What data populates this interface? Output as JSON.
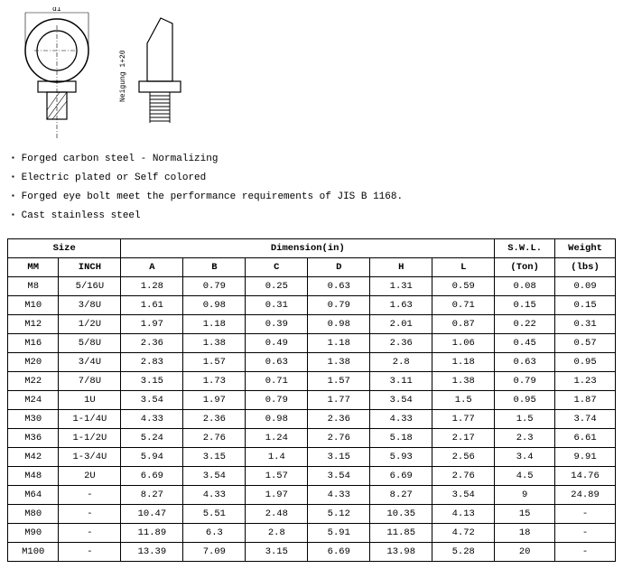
{
  "diagram": {
    "label_neigung": "Neigung 1+20",
    "label_d1": "d1",
    "label_d2": "d2"
  },
  "bullets": [
    "Forged carbon steel - Normalizing",
    "Electric plated or Self colored",
    "Forged eye bolt meet the performance requirements of JIS B 1168.",
    "Cast stainless steel"
  ],
  "table": {
    "header": {
      "size": "Size",
      "dimension": "Dimension(in)",
      "swl": "S.W.L.",
      "weight": "Weight",
      "mm": "MM",
      "inch": "INCH",
      "a": "A",
      "b": "B",
      "c": "C",
      "d": "D",
      "h": "H",
      "l": "L",
      "ton": "(Ton)",
      "lbs": "(lbs)"
    },
    "rows": [
      {
        "mm": "M8",
        "inch": "5/16U",
        "a": "1.28",
        "b": "0.79",
        "c": "0.25",
        "d": "0.63",
        "h": "1.31",
        "l": "0.59",
        "swl": "0.08",
        "wt": "0.09"
      },
      {
        "mm": "M10",
        "inch": "3/8U",
        "a": "1.61",
        "b": "0.98",
        "c": "0.31",
        "d": "0.79",
        "h": "1.63",
        "l": "0.71",
        "swl": "0.15",
        "wt": "0.15"
      },
      {
        "mm": "M12",
        "inch": "1/2U",
        "a": "1.97",
        "b": "1.18",
        "c": "0.39",
        "d": "0.98",
        "h": "2.01",
        "l": "0.87",
        "swl": "0.22",
        "wt": "0.31"
      },
      {
        "mm": "M16",
        "inch": "5/8U",
        "a": "2.36",
        "b": "1.38",
        "c": "0.49",
        "d": "1.18",
        "h": "2.36",
        "l": "1.06",
        "swl": "0.45",
        "wt": "0.57"
      },
      {
        "mm": "M20",
        "inch": "3/4U",
        "a": "2.83",
        "b": "1.57",
        "c": "0.63",
        "d": "1.38",
        "h": "2.8",
        "l": "1.18",
        "swl": "0.63",
        "wt": "0.95"
      },
      {
        "mm": "M22",
        "inch": "7/8U",
        "a": "3.15",
        "b": "1.73",
        "c": "0.71",
        "d": "1.57",
        "h": "3.11",
        "l": "1.38",
        "swl": "0.79",
        "wt": "1.23"
      },
      {
        "mm": "M24",
        "inch": "1U",
        "a": "3.54",
        "b": "1.97",
        "c": "0.79",
        "d": "1.77",
        "h": "3.54",
        "l": "1.5",
        "swl": "0.95",
        "wt": "1.87"
      },
      {
        "mm": "M30",
        "inch": "1-1/4U",
        "a": "4.33",
        "b": "2.36",
        "c": "0.98",
        "d": "2.36",
        "h": "4.33",
        "l": "1.77",
        "swl": "1.5",
        "wt": "3.74"
      },
      {
        "mm": "M36",
        "inch": "1-1/2U",
        "a": "5.24",
        "b": "2.76",
        "c": "1.24",
        "d": "2.76",
        "h": "5.18",
        "l": "2.17",
        "swl": "2.3",
        "wt": "6.61"
      },
      {
        "mm": "M42",
        "inch": "1-3/4U",
        "a": "5.94",
        "b": "3.15",
        "c": "1.4",
        "d": "3.15",
        "h": "5.93",
        "l": "2.56",
        "swl": "3.4",
        "wt": "9.91"
      },
      {
        "mm": "M48",
        "inch": "2U",
        "a": "6.69",
        "b": "3.54",
        "c": "1.57",
        "d": "3.54",
        "h": "6.69",
        "l": "2.76",
        "swl": "4.5",
        "wt": "14.76"
      },
      {
        "mm": "M64",
        "inch": "-",
        "a": "8.27",
        "b": "4.33",
        "c": "1.97",
        "d": "4.33",
        "h": "8.27",
        "l": "3.54",
        "swl": "9",
        "wt": "24.89"
      },
      {
        "mm": "M80",
        "inch": "-",
        "a": "10.47",
        "b": "5.51",
        "c": "2.48",
        "d": "5.12",
        "h": "10.35",
        "l": "4.13",
        "swl": "15",
        "wt": "-"
      },
      {
        "mm": "M90",
        "inch": "-",
        "a": "11.89",
        "b": "6.3",
        "c": "2.8",
        "d": "5.91",
        "h": "11.85",
        "l": "4.72",
        "swl": "18",
        "wt": "-"
      },
      {
        "mm": "M100",
        "inch": "-",
        "a": "13.39",
        "b": "7.09",
        "c": "3.15",
        "d": "6.69",
        "h": "13.98",
        "l": "5.28",
        "swl": "20",
        "wt": "-"
      }
    ]
  }
}
